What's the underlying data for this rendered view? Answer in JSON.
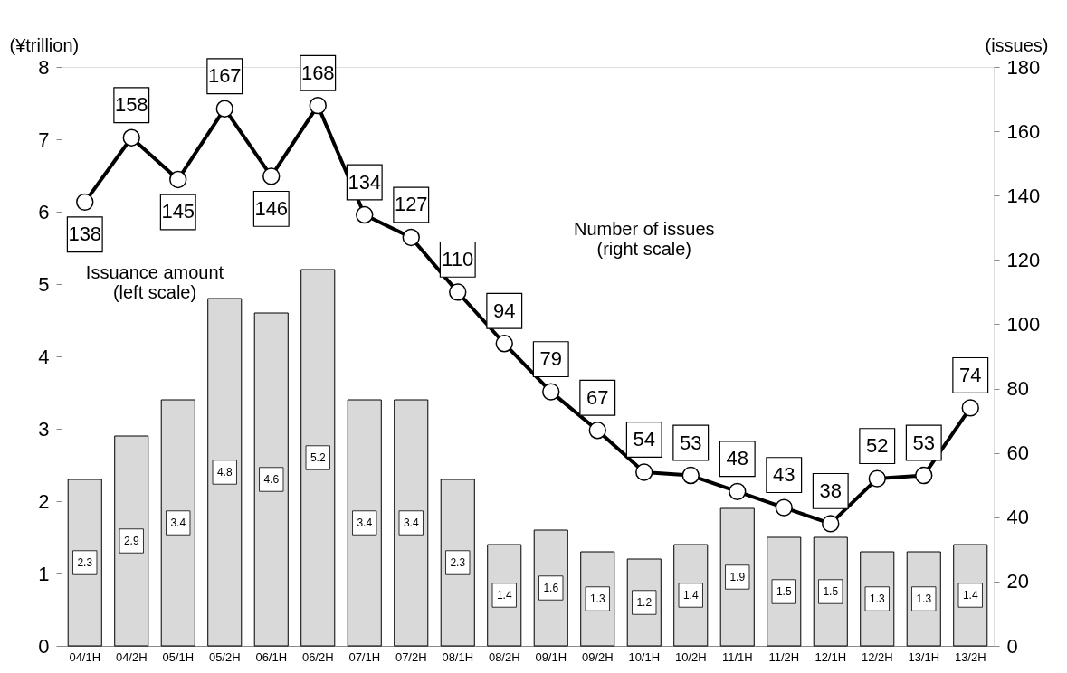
{
  "chart_data": {
    "type": "bar",
    "ylabel": "(¥trillion)",
    "y2label": "(issues)",
    "categories": [
      "04/1H",
      "04/2H",
      "05/1H",
      "05/2H",
      "06/1H",
      "06/2H",
      "07/1H",
      "07/2H",
      "08/1H",
      "08/2H",
      "09/1H",
      "09/2H",
      "10/1H",
      "10/2H",
      "11/1H",
      "11/2H",
      "12/1H",
      "12/2H",
      "13/1H",
      "13/2H"
    ],
    "series": [
      {
        "color": "#d9d9d9",
        "values": [
          2.3,
          2.9,
          3.4,
          4.8,
          4.6,
          5.2,
          3.4,
          3.4,
          2.3,
          1.4,
          1.6,
          1.3,
          1.2,
          1.4,
          1.9,
          1.5,
          1.5,
          1.3,
          1.3,
          1.4
        ]
      },
      {
        "type": "line",
        "axis": "y2",
        "color": "#000000",
        "marker": "circle",
        "values": [
          138,
          158,
          145,
          167,
          146,
          168,
          134,
          127,
          110,
          94,
          79,
          67,
          54,
          53,
          48,
          43,
          38,
          52,
          53,
          74
        ]
      }
    ],
    "ylim": [
      0,
      8
    ],
    "yticks": [
      0,
      1,
      2,
      3,
      4,
      5,
      6,
      7,
      8
    ],
    "y2lim": [
      0,
      180
    ],
    "y2ticks": [
      0,
      20,
      40,
      60,
      80,
      100,
      120,
      140,
      160,
      180
    ],
    "grid": false,
    "data_labels": true,
    "annotations": [
      "Issuance amount\n(left scale)",
      "Number of issues\n(right scale)"
    ]
  }
}
